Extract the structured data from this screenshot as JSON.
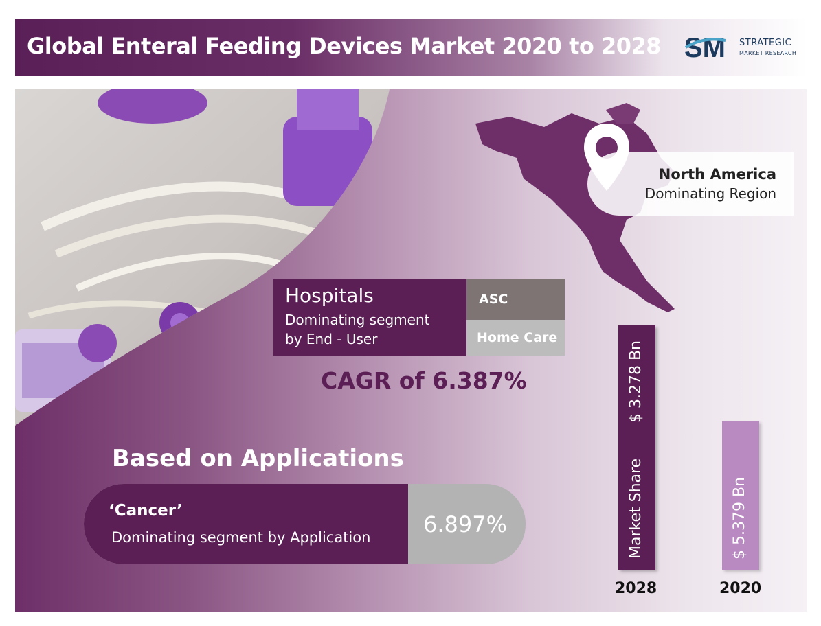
{
  "header": {
    "title": "Global Enteral Feeding Devices Market 2020 to 2028",
    "logo_line1": "STRATEGIC",
    "logo_line2": "MARKET RESEARCH"
  },
  "region": {
    "name": "North America",
    "label": "Dominating Region"
  },
  "end_user": {
    "top_segment": "Hospitals",
    "caption_line1": "Dominating segment",
    "caption_line2": "by End - User",
    "others": [
      "ASC",
      "Home Care"
    ]
  },
  "cagr": "CAGR of 6.387%",
  "applications": {
    "heading": "Based on Applications",
    "segment": "‘Cancer’",
    "caption": "Dominating segment by Application",
    "share": "6.897%"
  },
  "market": {
    "bars": [
      {
        "year": "2028",
        "label": "Market Share",
        "value_text": "$ 3.278 Bn"
      },
      {
        "year": "2020",
        "value_text": "$ 5.379 Bn"
      }
    ]
  },
  "colors": {
    "primary": "#5b1f55",
    "accent": "#b989c2",
    "grey": "#7e7474"
  }
}
